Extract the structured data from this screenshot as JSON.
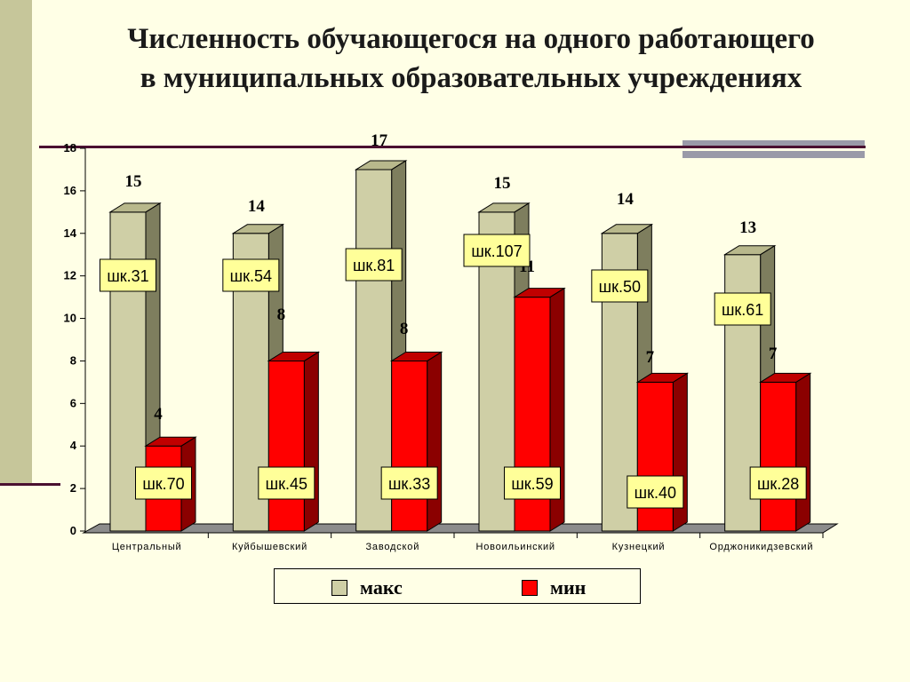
{
  "title_line1": "Численность обучающегося на одного работающего",
  "title_line2": "в муниципальных образовательных учреждениях",
  "colors": {
    "max": "#cfcfa6",
    "min": "#ff0000",
    "label_box": "#ffff99"
  },
  "chart_data": {
    "type": "bar",
    "categories": [
      "Центральный",
      "Куйбышевский",
      "Заводской",
      "Новоильинский",
      "Кузнецкий",
      "Орджоникидзевский"
    ],
    "series": [
      {
        "name": "макс",
        "values": [
          15,
          14,
          17,
          15,
          14,
          13
        ],
        "schools": [
          "шк.31",
          "шк.54",
          "шк.81",
          "шк.107",
          "шк.50",
          "шк.61"
        ]
      },
      {
        "name": "мин",
        "values": [
          4,
          8,
          8,
          11,
          7,
          7
        ],
        "schools": [
          "шк.70",
          "шк.45",
          "шк.33",
          "шк.59",
          "шк.40",
          "шк.28"
        ]
      }
    ],
    "ylim": [
      0,
      18
    ],
    "yticks": [
      "0",
      "2",
      "4",
      "6",
      "8",
      "10",
      "12",
      "14",
      "16",
      "18"
    ],
    "legend_position": "bottom"
  }
}
